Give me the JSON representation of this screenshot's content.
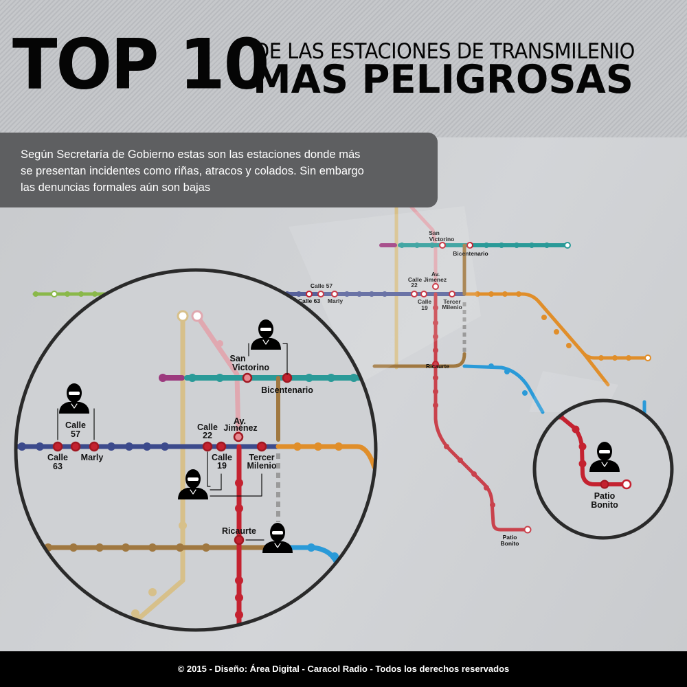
{
  "header": {
    "title_big": "TOP 10",
    "title_line1": "DE LAS ESTACIONES DE TRANSMILENIO",
    "title_line2": "MAS PELIGROSAS"
  },
  "description": {
    "lines": [
      "Según Secretaría de Gobierno estas son las estaciones donde más",
      "se presentan incidentes como riñas, atracos y colados. Sin embargo",
      "las denuncias formales aún son bajas"
    ]
  },
  "stations": {
    "san_victorino": [
      "San",
      "Victorino"
    ],
    "bicentenario": "Bicentenario",
    "av_jimenez": [
      "Av.",
      "Jiménez"
    ],
    "calle_22": [
      "Calle",
      "22"
    ],
    "calle_19": [
      "Calle",
      "19"
    ],
    "tercer_milenio": [
      "Tercer",
      "Milenio"
    ],
    "calle_57": [
      "Calle",
      "57"
    ],
    "calle_63": [
      "Calle",
      "63"
    ],
    "marly": "Marly",
    "ricaurte": "Ricaurte",
    "patio_bonito": [
      "Patio",
      "Bonito"
    ]
  },
  "small_map_labels": {
    "san_victorino": [
      "San",
      "Victorino"
    ],
    "bicentenario": "Bicentenario",
    "av_jimenez": [
      "Av.",
      "Calle Jimenez"
    ],
    "calle_22": "22",
    "calle_57": "Calle 57",
    "calle_63": "Calle 63",
    "marly": "Marly",
    "calle_19": [
      "Calle",
      "19"
    ],
    "tercer_milenio": [
      "Tercer",
      "Milenio"
    ],
    "ricaurte": "Ricaurte",
    "patio_bonito": [
      "Patio",
      "Bonito"
    ]
  },
  "colors": {
    "teal": "#2a9a98",
    "magenta": "#9c3a7e",
    "blue": "#3c4a8c",
    "green": "#8ab84a",
    "orange": "#e08e2a",
    "brown": "#a07840",
    "red": "#c42230",
    "pink": "#e0a8b0",
    "tan": "#d7c08a",
    "lightblue": "#2a9ad8",
    "grey": "#9a9a9a",
    "highlight": "#c42230"
  },
  "icons": {
    "robber": "masked-robber-icon"
  },
  "footer": "© 2015 - Diseño: Área Digital - Caracol Radio - Todos los derechos reservados"
}
